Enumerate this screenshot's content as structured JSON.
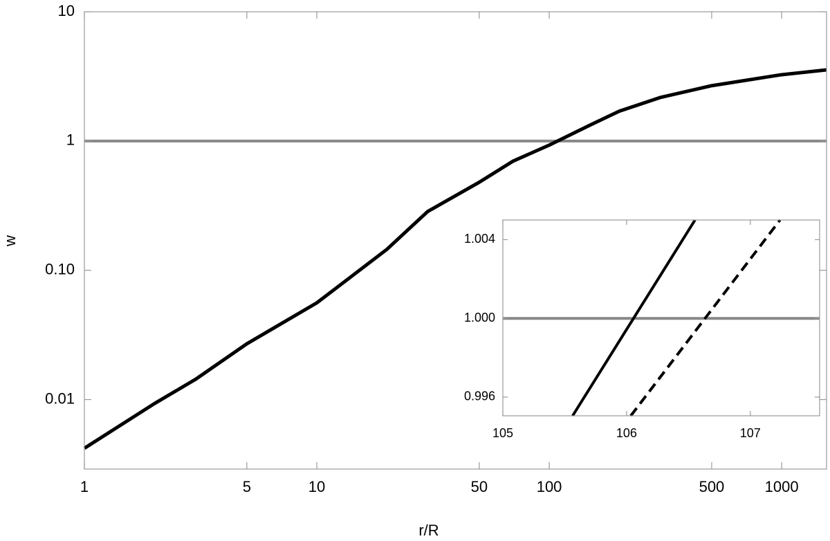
{
  "chart_data": [
    {
      "type": "line",
      "xlabel": "r/R",
      "ylabel": "w",
      "xlog": true,
      "ylog": true,
      "xlim": [
        1,
        1560
      ],
      "ylim": [
        0.0029,
        10
      ],
      "xticks": [
        1,
        5,
        10,
        50,
        100,
        500,
        1000
      ],
      "yticks": [
        0.01,
        {
          "value": 0.1,
          "label": "0.10"
        },
        1,
        10
      ],
      "x": [
        1,
        2,
        3,
        5,
        10,
        20,
        30,
        50,
        70,
        100,
        150,
        200,
        300,
        500,
        1000,
        1560
      ],
      "series": [
        {
          "color": "#000000",
          "values": [
            0.0042,
            0.0093,
            0.0143,
            0.027,
            0.056,
            0.145,
            0.285,
            0.48,
            0.7,
            0.93,
            1.33,
            1.7,
            2.17,
            2.68,
            3.26,
            3.55
          ]
        }
      ],
      "hline": 1,
      "hline_color": "#888888"
    },
    {
      "type": "line",
      "xlim": [
        105,
        107.56
      ],
      "ylim": [
        0.99505,
        1.005
      ],
      "xticks": [
        105,
        106,
        107
      ],
      "yticks": [
        0.996,
        {
          "value": 1.0,
          "label": "1.000"
        },
        1.004
      ],
      "series": [
        {
          "color": "#000000",
          "dash": false,
          "x": [
            105.564,
            106.553
          ],
          "values": [
            0.99505,
            1.005
          ]
        },
        {
          "color": "#000000",
          "dash": true,
          "x": [
            106.034,
            107.24
          ],
          "values": [
            0.99505,
            1.005
          ]
        }
      ],
      "hline": 1,
      "hline_color": "#888888"
    }
  ]
}
